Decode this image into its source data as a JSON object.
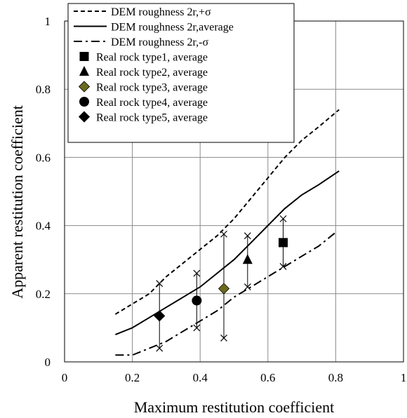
{
  "chart_data": {
    "type": "scatter",
    "title": "",
    "xlabel": "Maximum restitution coefficient",
    "ylabel": "Apparent restitution coefficient",
    "xlim": [
      0,
      1
    ],
    "ylim": [
      0,
      1
    ],
    "xticks": [
      0,
      0.2,
      0.4,
      0.6,
      0.8,
      1
    ],
    "yticks": [
      0,
      0.2,
      0.4,
      0.6,
      0.8,
      1
    ],
    "xtick_labels": [
      "0",
      "0.2",
      "0.4",
      "0.6",
      "0.8",
      "1"
    ],
    "ytick_labels": [
      "0",
      "0.2",
      "0.4",
      "0.6",
      "0.8",
      "1"
    ],
    "grid": true,
    "legend_position": "top-left",
    "lines": [
      {
        "name": "DEM roughness 2r,+σ",
        "style": "dashed",
        "x": [
          0.15,
          0.2,
          0.25,
          0.3,
          0.35,
          0.4,
          0.45,
          0.5,
          0.55,
          0.6,
          0.65,
          0.7,
          0.75,
          0.81
        ],
        "y": [
          0.14,
          0.17,
          0.2,
          0.25,
          0.29,
          0.33,
          0.37,
          0.42,
          0.48,
          0.54,
          0.6,
          0.65,
          0.69,
          0.74
        ]
      },
      {
        "name": "DEM roughness 2r,average",
        "style": "solid",
        "x": [
          0.15,
          0.2,
          0.25,
          0.3,
          0.35,
          0.4,
          0.45,
          0.5,
          0.55,
          0.6,
          0.65,
          0.7,
          0.75,
          0.81
        ],
        "y": [
          0.08,
          0.1,
          0.13,
          0.16,
          0.19,
          0.22,
          0.26,
          0.3,
          0.35,
          0.4,
          0.45,
          0.49,
          0.52,
          0.56
        ]
      },
      {
        "name": "DEM roughness 2r,-σ",
        "style": "dashdot",
        "x": [
          0.15,
          0.2,
          0.25,
          0.3,
          0.35,
          0.4,
          0.45,
          0.5,
          0.55,
          0.6,
          0.65,
          0.7,
          0.75,
          0.8
        ],
        "y": [
          0.02,
          0.02,
          0.04,
          0.06,
          0.09,
          0.12,
          0.15,
          0.19,
          0.22,
          0.25,
          0.28,
          0.31,
          0.34,
          0.38
        ]
      }
    ],
    "series": [
      {
        "name": "Real rock type1, average",
        "marker": "square",
        "x": 0.645,
        "y": 0.35,
        "color": "#000000"
      },
      {
        "name": "Real rock type2, average",
        "marker": "triangle",
        "x": 0.54,
        "y": 0.3,
        "color": "#000000"
      },
      {
        "name": "Real rock type3, average",
        "marker": "diamond",
        "x": 0.47,
        "y": 0.215,
        "color": "#6b6b1e"
      },
      {
        "name": "Real rock type4, average",
        "marker": "circle",
        "x": 0.39,
        "y": 0.18,
        "color": "#000000"
      },
      {
        "name": "Real rock type5, average",
        "marker": "diamond",
        "x": 0.28,
        "y": 0.135,
        "color": "#000000"
      }
    ],
    "error_bars": [
      {
        "x": 0.28,
        "low": 0.04,
        "high": 0.23
      },
      {
        "x": 0.39,
        "low": 0.1,
        "high": 0.26
      },
      {
        "x": 0.47,
        "low": 0.07,
        "high": 0.375
      },
      {
        "x": 0.54,
        "low": 0.22,
        "high": 0.37
      },
      {
        "x": 0.645,
        "low": 0.28,
        "high": 0.42
      }
    ]
  }
}
